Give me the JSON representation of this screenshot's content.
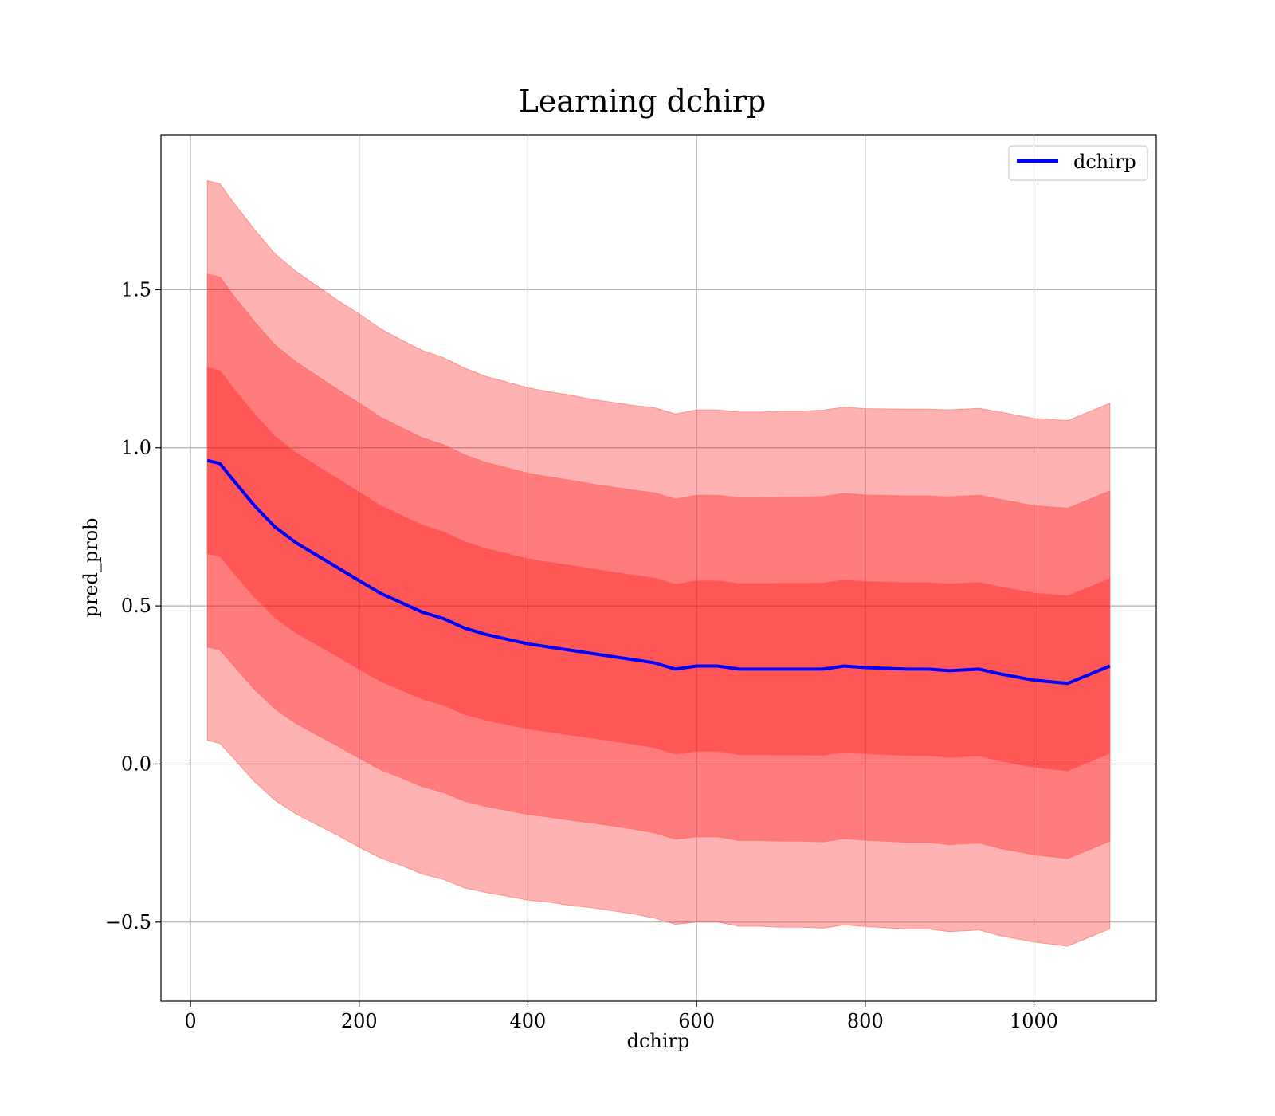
{
  "chart_data": {
    "type": "line",
    "title": "Learning dchirp",
    "xlabel": "dchirp",
    "ylabel": "pred_prob",
    "xlim": [
      -35,
      1145
    ],
    "ylim": [
      -0.75,
      1.99
    ],
    "grid": true,
    "legend_position": "top-right",
    "x_ticks": [
      0,
      200,
      400,
      600,
      800,
      1000
    ],
    "x_tick_labels": [
      "0",
      "200",
      "400",
      "600",
      "800",
      "1000"
    ],
    "y_ticks": [
      -0.5,
      0.0,
      0.5,
      1.0,
      1.5
    ],
    "y_tick_labels": [
      "−0.5",
      "0.0",
      "0.5",
      "1.0",
      "1.5"
    ],
    "colors": {
      "line": "#0000ff",
      "band": "#ff0000",
      "band_edge": "#ff6666",
      "grid": "#b0b0b0"
    },
    "series": [
      {
        "name": "dchirp",
        "x": [
          20,
          35,
          50,
          75,
          100,
          125,
          150,
          175,
          200,
          225,
          250,
          275,
          300,
          325,
          350,
          375,
          400,
          425,
          450,
          475,
          500,
          525,
          550,
          575,
          600,
          625,
          650,
          675,
          700,
          725,
          750,
          775,
          800,
          850,
          875,
          900,
          935,
          960,
          1000,
          1040,
          1090
        ],
        "y": [
          0.96,
          0.95,
          0.9,
          0.82,
          0.75,
          0.7,
          0.66,
          0.62,
          0.58,
          0.54,
          0.51,
          0.48,
          0.46,
          0.43,
          0.41,
          0.395,
          0.38,
          0.37,
          0.36,
          0.35,
          0.34,
          0.33,
          0.32,
          0.3,
          0.31,
          0.31,
          0.3,
          0.3,
          0.3,
          0.3,
          0.3,
          0.31,
          0.305,
          0.3,
          0.3,
          0.295,
          0.3,
          0.285,
          0.265,
          0.255,
          0.31
        ],
        "stdev": [
          0.295,
          0.295,
          0.293,
          0.291,
          0.288,
          0.286,
          0.284,
          0.282,
          0.281,
          0.279,
          0.277,
          0.276,
          0.275,
          0.274,
          0.272,
          0.271,
          0.27,
          0.269,
          0.269,
          0.268,
          0.268,
          0.268,
          0.269,
          0.269,
          0.27,
          0.27,
          0.271,
          0.271,
          0.272,
          0.272,
          0.273,
          0.273,
          0.273,
          0.274,
          0.274,
          0.275,
          0.275,
          0.276,
          0.276,
          0.277,
          0.277
        ]
      }
    ],
    "bands": [
      {
        "sigma": 1,
        "opacity": 0.3
      },
      {
        "sigma": 2,
        "opacity": 0.3
      },
      {
        "sigma": 3,
        "opacity": 0.3
      }
    ]
  }
}
